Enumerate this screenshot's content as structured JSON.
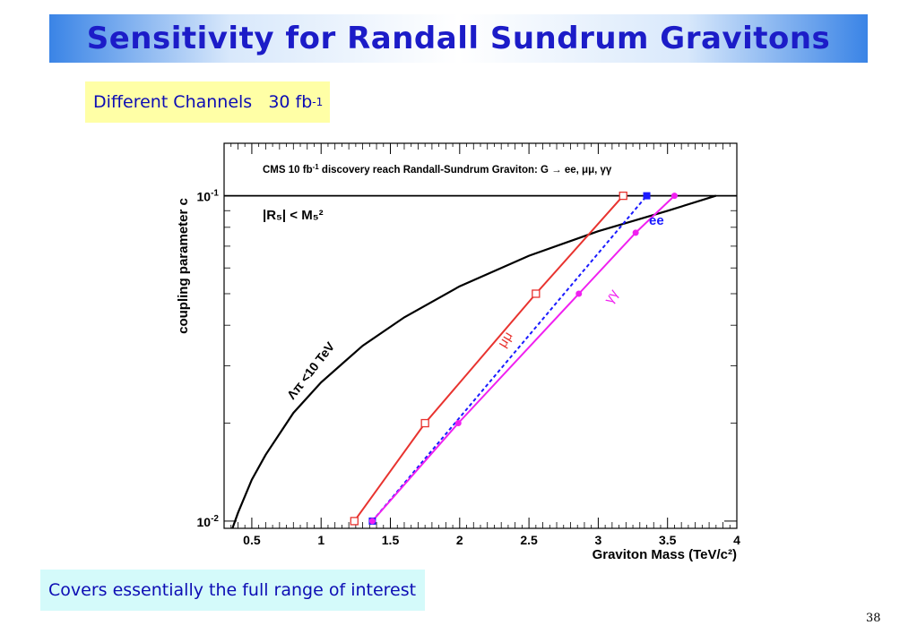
{
  "slide": {
    "title": "Sensitivity for Randall Sundrum Gravitons",
    "subtitle_prefix": "Different Channels   30 fb",
    "subtitle_exp": "-1",
    "caption": "Covers essentially the full range of interest",
    "page_number": "38"
  },
  "chart_data": {
    "type": "line",
    "title_prefix": "CMS 10 fb",
    "title_exp": "-1",
    "title_suffix": " discovery reach  Randall-Sundrum Graviton: G → ee, μμ, γγ",
    "xlabel": "Graviton Mass (TeV/c²)",
    "ylabel": "coupling parameter c",
    "xlim": [
      0.3,
      4.0
    ],
    "ylim": [
      0.0095,
      0.145
    ],
    "yscale": "log",
    "x_ticks": [
      "0.5",
      "1",
      "1.5",
      "2",
      "2.5",
      "3",
      "3.5",
      "4"
    ],
    "x_tick_values": [
      0.5,
      1,
      1.5,
      2,
      2.5,
      3,
      3.5,
      4
    ],
    "y_ticks": [
      "10",
      "10"
    ],
    "y_tick_exps": [
      "-2",
      "-1"
    ],
    "y_tick_values": [
      0.01,
      0.1
    ],
    "colors": {
      "mumu": "#e8332f",
      "ee": "#1a1aff",
      "gammagamma": "#f020f0",
      "bound": "#000000"
    },
    "series": [
      {
        "name": "μμ",
        "x": [
          1.24,
          1.75,
          2.55,
          3.18
        ],
        "y": [
          0.01,
          0.02,
          0.05,
          0.1
        ]
      },
      {
        "name": "ee",
        "x": [
          1.37,
          3.35
        ],
        "y": [
          0.01,
          0.1
        ]
      },
      {
        "name": "γγ",
        "x": [
          1.37,
          1.99,
          2.86,
          3.27,
          3.55
        ],
        "y": [
          0.01,
          0.02,
          0.05,
          0.077,
          0.1
        ]
      }
    ],
    "bound_curve": {
      "label": "Λπ <10 TeV",
      "x": [
        0.36,
        0.4,
        0.5,
        0.6,
        0.8,
        1.0,
        1.3,
        1.6,
        2.0,
        2.5,
        3.0,
        3.5,
        3.85
      ],
      "y": [
        0.0092,
        0.0106,
        0.0134,
        0.016,
        0.0215,
        0.0267,
        0.0346,
        0.0423,
        0.0527,
        0.0654,
        0.0778,
        0.0899,
        0.1
      ]
    },
    "hline": {
      "y": 0.1,
      "label": "|R₅| < M₅²"
    }
  }
}
